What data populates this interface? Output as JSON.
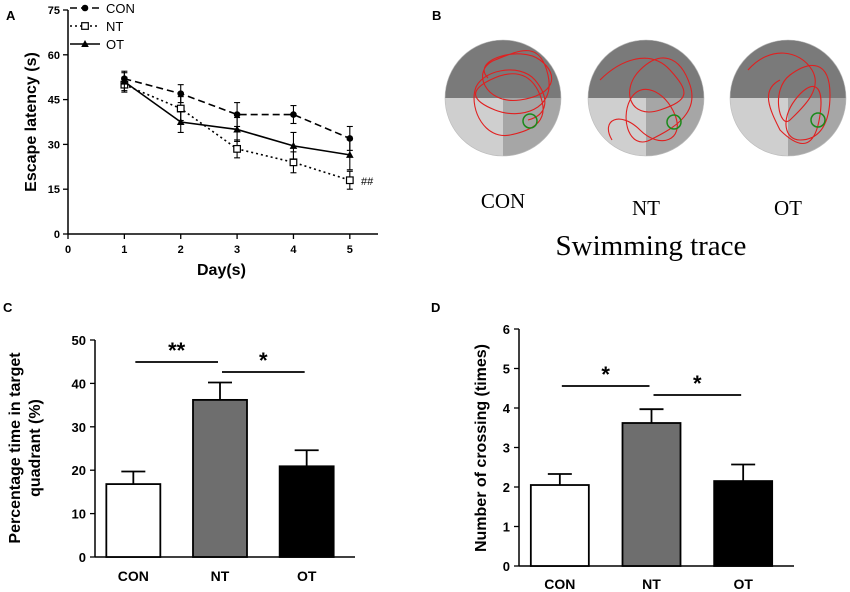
{
  "chart_data": [
    {
      "panel_label": "A",
      "type": "line",
      "xlabel": "Day(s)",
      "ylabel": "Escape latency (s)",
      "xlim": [
        0,
        5.5
      ],
      "ylim": [
        0,
        75
      ],
      "xticks": [
        "0",
        "1",
        "2",
        "3",
        "4",
        "5"
      ],
      "yticks": [
        "0",
        "15",
        "30",
        "45",
        "60",
        "75"
      ],
      "x": [
        1,
        2,
        3,
        4,
        5
      ],
      "annotation": "##",
      "legend": "top-left",
      "series": [
        {
          "name": "CON",
          "values": [
            52,
            47,
            40,
            40,
            32
          ],
          "errors": [
            2.5,
            3,
            4,
            3,
            4
          ],
          "style": "dashed",
          "marker": "circle"
        },
        {
          "name": "NT",
          "values": [
            50,
            42,
            28.5,
            24,
            18
          ],
          "errors": [
            2.5,
            4,
            3,
            3.5,
            3
          ],
          "style": "dotted",
          "marker": "square"
        },
        {
          "name": "OT",
          "values": [
            51,
            37.5,
            35,
            29.5,
            26.5
          ],
          "errors": [
            3,
            3.5,
            4,
            4.5,
            5
          ],
          "style": "solid",
          "marker": "triangle"
        }
      ]
    },
    {
      "panel_label": "C",
      "type": "bar",
      "categories": [
        "CON",
        "NT",
        "OT"
      ],
      "values": [
        16.8,
        36.2,
        20.9
      ],
      "errors": [
        2.9,
        4.0,
        3.7
      ],
      "fills": [
        "#ffffff",
        "#6e6e6e",
        "#000000"
      ],
      "ylabel_line1": "Percentage time in target",
      "ylabel_line2": "quadrant (%)",
      "ylim": [
        0,
        50
      ],
      "yticks": [
        "0",
        "10",
        "20",
        "30",
        "40",
        "50"
      ],
      "significance": [
        {
          "from": 0,
          "to": 1,
          "label": "**"
        },
        {
          "from": 1,
          "to": 2,
          "label": "*"
        }
      ]
    },
    {
      "panel_label": "D",
      "type": "bar",
      "categories": [
        "CON",
        "NT",
        "OT"
      ],
      "values": [
        2.05,
        3.62,
        2.15
      ],
      "errors": [
        0.28,
        0.35,
        0.42
      ],
      "fills": [
        "#ffffff",
        "#6e6e6e",
        "#000000"
      ],
      "ylabel": "Number of crossing (times)",
      "ylim": [
        0,
        6
      ],
      "yticks": [
        "0",
        "1",
        "2",
        "3",
        "4",
        "5",
        "6"
      ],
      "significance": [
        {
          "from": 0,
          "to": 1,
          "label": "*"
        },
        {
          "from": 1,
          "to": 2,
          "label": "*"
        }
      ]
    }
  ],
  "panel_b": {
    "panel_label": "B",
    "traces": [
      {
        "label": "CON"
      },
      {
        "label": "NT"
      },
      {
        "label": "OT"
      }
    ],
    "title": "Swimming trace",
    "colors": {
      "trace": "#e02020",
      "platform": "#1a8a1a",
      "dark": "#7a7a7a",
      "light": "#cfcfcf"
    }
  }
}
